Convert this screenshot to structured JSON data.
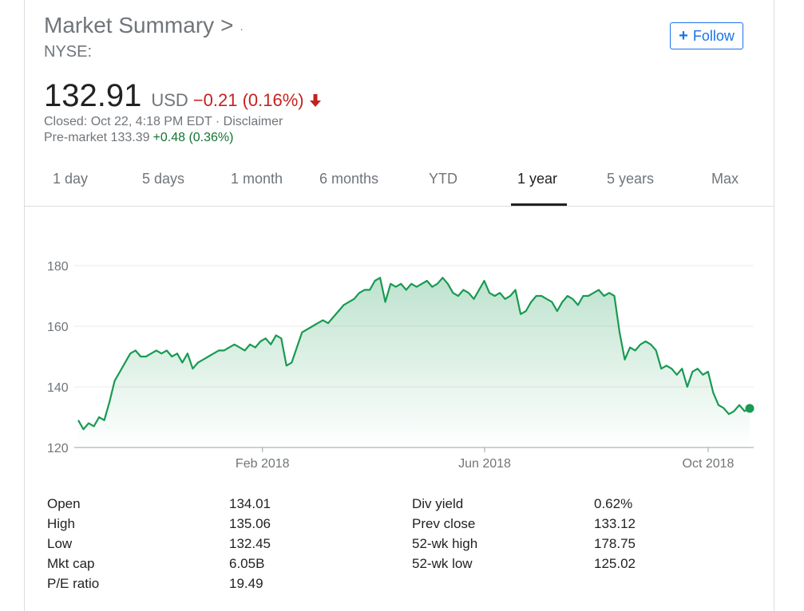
{
  "header": {
    "title": "Market Summary",
    "title_sep": ">",
    "title_extra": "·",
    "exchange": "NYSE:",
    "follow_label": "Follow"
  },
  "quote": {
    "price": "132.91",
    "currency": "USD",
    "change": "−0.21 (0.16%)",
    "closed": "Closed: Oct 22, 4:18 PM EDT · Disclaimer",
    "premarket_label": "Pre-market 133.39",
    "premarket_change": "+0.48 (0.36%)"
  },
  "tabs": [
    {
      "label": "1 day"
    },
    {
      "label": "5 days"
    },
    {
      "label": "1 month"
    },
    {
      "label": "6 months"
    },
    {
      "label": "YTD"
    },
    {
      "label": "1 year"
    },
    {
      "label": "5 years"
    },
    {
      "label": "Max"
    }
  ],
  "active_tab": "1 year",
  "colors": {
    "line": "#189a52",
    "down": "#c5221f",
    "up": "#137333",
    "accent": "#1a73e8"
  },
  "chart_data": {
    "type": "line",
    "ylim": [
      120,
      180
    ],
    "yticks": [
      120,
      140,
      160,
      180
    ],
    "xticks": [
      {
        "label": "Feb 2018",
        "t": 0.277
      },
      {
        "label": "Jun 2018",
        "t": 0.604
      },
      {
        "label": "Oct 2018",
        "t": 0.933
      }
    ],
    "series": [
      {
        "values": [
          129,
          126,
          128,
          127,
          130,
          129,
          135,
          142,
          145,
          148,
          151,
          152,
          150,
          150,
          151,
          152,
          151,
          152,
          150,
          151,
          148,
          151,
          146,
          148,
          149,
          150,
          151,
          152,
          152,
          153,
          154,
          153,
          152,
          154,
          153,
          155,
          156,
          154,
          157,
          156,
          147,
          148,
          153,
          158,
          159,
          160,
          161,
          162,
          161,
          163,
          165,
          167,
          168,
          169,
          171,
          172,
          172,
          175,
          176,
          168,
          174,
          173,
          174,
          172,
          174,
          173,
          174,
          175,
          173,
          174,
          176,
          174,
          171,
          170,
          172,
          171,
          169,
          172,
          175,
          171,
          170,
          171,
          169,
          170,
          172,
          164,
          165,
          168,
          170,
          170,
          169,
          168,
          165,
          168,
          170,
          169,
          167,
          170,
          170,
          171,
          172,
          170,
          171,
          170,
          158,
          149,
          153,
          152,
          154,
          155,
          154,
          152,
          146,
          147,
          146,
          144,
          146,
          140,
          145,
          146,
          144,
          145,
          138,
          134,
          133,
          131,
          132,
          134,
          132,
          133
        ]
      }
    ],
    "last_value": 132.91
  },
  "stats": {
    "left": [
      {
        "label": "Open",
        "value": "134.01"
      },
      {
        "label": "High",
        "value": "135.06"
      },
      {
        "label": "Low",
        "value": "132.45"
      },
      {
        "label": "Mkt cap",
        "value": "6.05B"
      },
      {
        "label": "P/E ratio",
        "value": "19.49"
      }
    ],
    "right": [
      {
        "label": "Div yield",
        "value": "0.62%"
      },
      {
        "label": "Prev close",
        "value": "133.12"
      },
      {
        "label": "52-wk high",
        "value": "178.75"
      },
      {
        "label": "52-wk low",
        "value": "125.02"
      }
    ]
  }
}
